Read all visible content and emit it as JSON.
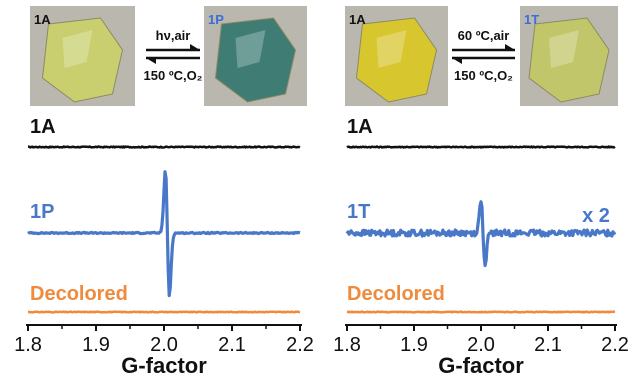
{
  "chart_data": [
    {
      "type": "line",
      "panel": "left",
      "photos": [
        {
          "label": "1A",
          "color": "#c9cf6e",
          "label_color": "#111111"
        },
        {
          "label": "1P",
          "color": "#3f7d74",
          "label_color": "#3a6fd6"
        }
      ],
      "arrow_top": "hν,air",
      "arrow_bottom": "150 ºC,O₂",
      "xlabel": "G-factor",
      "xlim": [
        1.8,
        2.2
      ],
      "xticks": [
        "1.8",
        "1.9",
        "2.0",
        "2.1",
        "2.2"
      ],
      "grid": false,
      "series": [
        {
          "name": "1A",
          "color": "#111111",
          "signal": "flat",
          "noise": 0.5,
          "amplitude": 0
        },
        {
          "name": "1P",
          "color": "#4a78c8",
          "signal": "derivative",
          "center": 2.005,
          "width": 0.003,
          "amplitude": 74,
          "noise": 0.6
        },
        {
          "name": "Decolored",
          "color": "#f08a3c",
          "signal": "flat",
          "noise": 0.4,
          "amplitude": 0
        }
      ],
      "multiplier": ""
    },
    {
      "type": "line",
      "panel": "right",
      "photos": [
        {
          "label": "1A",
          "color": "#d8c62f",
          "label_color": "#111111"
        },
        {
          "label": "1T",
          "color": "#c2c66a",
          "label_color": "#3a6fd6"
        }
      ],
      "arrow_top": "60 ºC,air",
      "arrow_bottom": "150 ºC,O₂",
      "xlabel": "G-factor",
      "xlim": [
        1.8,
        2.2
      ],
      "xticks": [
        "1.8",
        "1.9",
        "2.0",
        "2.1",
        "2.2"
      ],
      "grid": false,
      "series": [
        {
          "name": "1A",
          "color": "#111111",
          "signal": "flat",
          "noise": 0.5,
          "amplitude": 0
        },
        {
          "name": "1T",
          "color": "#4a78c8",
          "signal": "derivative",
          "center": 2.003,
          "width": 0.003,
          "amplitude": 40,
          "noise": 3.0
        },
        {
          "name": "Decolored",
          "color": "#f08a3c",
          "signal": "flat",
          "noise": 0.4,
          "amplitude": 0
        }
      ],
      "multiplier": "x 2"
    }
  ]
}
